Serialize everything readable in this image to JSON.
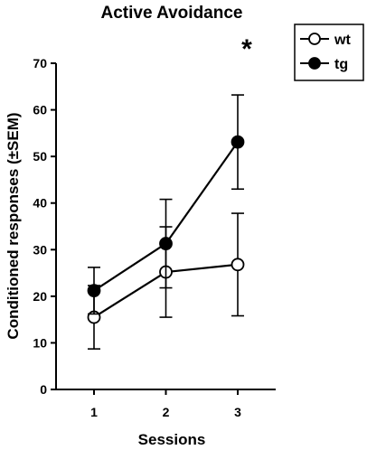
{
  "chart_data": {
    "type": "line",
    "title": "Active Avoidance",
    "xlabel": "Sessions",
    "ylabel": "Conditioned responses (±SEM)",
    "x": [
      1,
      2,
      3
    ],
    "xticks": [
      "1",
      "2",
      "3"
    ],
    "yticks": [
      "0",
      "10",
      "20",
      "30",
      "40",
      "50",
      "60",
      "70"
    ],
    "ylim": [
      0,
      70
    ],
    "grid": false,
    "legend_position": "top-right",
    "series": [
      {
        "name": "wt",
        "marker": "open-circle",
        "color": "#000000",
        "values": [
          15.5,
          25.2,
          26.8
        ],
        "error": [
          6.8,
          9.7,
          11.0
        ]
      },
      {
        "name": "tg",
        "marker": "filled-circle",
        "color": "#000000",
        "values": [
          21.2,
          31.3,
          53.1
        ],
        "error": [
          5.0,
          9.5,
          10.1
        ]
      }
    ],
    "annotations": [
      {
        "text": "*",
        "x": 3
      }
    ]
  }
}
